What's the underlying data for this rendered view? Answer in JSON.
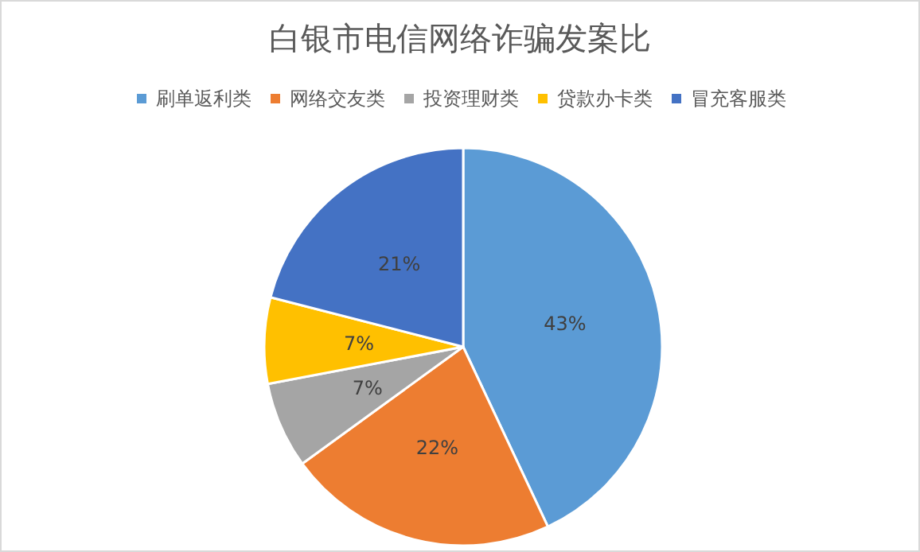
{
  "chart_data": {
    "type": "pie",
    "title": "白银市电信网络诈骗发案比",
    "categories": [
      "刷单返利类",
      "网络交友类",
      "投资理财类",
      "贷款办卡类",
      "冒充客服类"
    ],
    "values": [
      43,
      22,
      7,
      7,
      21
    ],
    "value_labels": [
      "43%",
      "22%",
      "7%",
      "7%",
      "21%"
    ],
    "colors": [
      "#5b9bd5",
      "#ed7d31",
      "#a5a5a5",
      "#ffc000",
      "#4472c4"
    ],
    "legend": "top"
  }
}
